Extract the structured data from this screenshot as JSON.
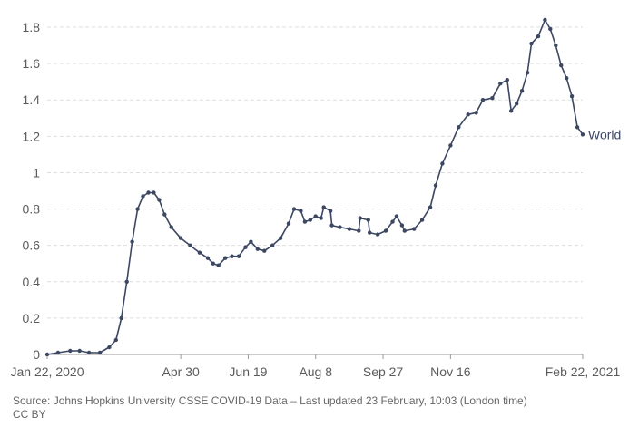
{
  "chart_data": {
    "type": "line",
    "title": "",
    "xlabel": "",
    "ylabel": "",
    "ylim": [
      0,
      1.85
    ],
    "y_ticks": [
      "0",
      "0.2",
      "0.4",
      "0.6",
      "0.8",
      "1",
      "1.2",
      "1.4",
      "1.6",
      "1.8"
    ],
    "x_ticks": [
      {
        "label": "Jan 22, 2020",
        "date": "2020-01-22"
      },
      {
        "label": "Apr 30",
        "date": "2020-04-30"
      },
      {
        "label": "Jun 19",
        "date": "2020-06-19"
      },
      {
        "label": "Aug 8",
        "date": "2020-08-08"
      },
      {
        "label": "Sep 27",
        "date": "2020-09-27"
      },
      {
        "label": "Nov 16",
        "date": "2020-11-16"
      },
      {
        "label": "Feb 22, 2021",
        "date": "2021-02-22"
      }
    ],
    "x_range": [
      "2020-01-22",
      "2021-02-22"
    ],
    "grid": "horizontal-dashed",
    "series": [
      {
        "name": "World",
        "color": "#3c4761",
        "points": [
          [
            "2020-01-22",
            0.0
          ],
          [
            "2020-01-30",
            0.01
          ],
          [
            "2020-02-08",
            0.02
          ],
          [
            "2020-02-15",
            0.02
          ],
          [
            "2020-02-22",
            0.01
          ],
          [
            "2020-03-01",
            0.01
          ],
          [
            "2020-03-08",
            0.04
          ],
          [
            "2020-03-13",
            0.08
          ],
          [
            "2020-03-17",
            0.2
          ],
          [
            "2020-03-21",
            0.4
          ],
          [
            "2020-03-25",
            0.62
          ],
          [
            "2020-03-29",
            0.8
          ],
          [
            "2020-04-02",
            0.87
          ],
          [
            "2020-04-06",
            0.89
          ],
          [
            "2020-04-10",
            0.89
          ],
          [
            "2020-04-14",
            0.85
          ],
          [
            "2020-04-18",
            0.77
          ],
          [
            "2020-04-23",
            0.7
          ],
          [
            "2020-04-30",
            0.64
          ],
          [
            "2020-05-07",
            0.6
          ],
          [
            "2020-05-14",
            0.56
          ],
          [
            "2020-05-20",
            0.53
          ],
          [
            "2020-05-24",
            0.5
          ],
          [
            "2020-05-28",
            0.49
          ],
          [
            "2020-06-02",
            0.53
          ],
          [
            "2020-06-07",
            0.54
          ],
          [
            "2020-06-12",
            0.54
          ],
          [
            "2020-06-17",
            0.59
          ],
          [
            "2020-06-21",
            0.62
          ],
          [
            "2020-06-26",
            0.58
          ],
          [
            "2020-07-01",
            0.57
          ],
          [
            "2020-07-07",
            0.6
          ],
          [
            "2020-07-13",
            0.64
          ],
          [
            "2020-07-19",
            0.72
          ],
          [
            "2020-07-23",
            0.8
          ],
          [
            "2020-07-28",
            0.79
          ],
          [
            "2020-07-31",
            0.73
          ],
          [
            "2020-08-04",
            0.74
          ],
          [
            "2020-08-08",
            0.76
          ],
          [
            "2020-08-12",
            0.75
          ],
          [
            "2020-08-14",
            0.81
          ],
          [
            "2020-08-19",
            0.79
          ],
          [
            "2020-08-20",
            0.71
          ],
          [
            "2020-08-26",
            0.7
          ],
          [
            "2020-09-02",
            0.69
          ],
          [
            "2020-09-09",
            0.68
          ],
          [
            "2020-09-10",
            0.75
          ],
          [
            "2020-09-16",
            0.74
          ],
          [
            "2020-09-17",
            0.67
          ],
          [
            "2020-09-23",
            0.66
          ],
          [
            "2020-09-29",
            0.68
          ],
          [
            "2020-10-04",
            0.73
          ],
          [
            "2020-10-07",
            0.76
          ],
          [
            "2020-10-11",
            0.71
          ],
          [
            "2020-10-13",
            0.68
          ],
          [
            "2020-10-20",
            0.69
          ],
          [
            "2020-10-26",
            0.74
          ],
          [
            "2020-11-01",
            0.81
          ],
          [
            "2020-11-05",
            0.93
          ],
          [
            "2020-11-10",
            1.05
          ],
          [
            "2020-11-16",
            1.15
          ],
          [
            "2020-11-22",
            1.25
          ],
          [
            "2020-11-29",
            1.32
          ],
          [
            "2020-12-05",
            1.33
          ],
          [
            "2020-12-10",
            1.4
          ],
          [
            "2020-12-17",
            1.41
          ],
          [
            "2020-12-23",
            1.49
          ],
          [
            "2020-12-28",
            1.51
          ],
          [
            "2020-12-31",
            1.34
          ],
          [
            "2021-01-04",
            1.38
          ],
          [
            "2021-01-08",
            1.45
          ],
          [
            "2021-01-12",
            1.55
          ],
          [
            "2021-01-15",
            1.71
          ],
          [
            "2021-01-20",
            1.75
          ],
          [
            "2021-01-25",
            1.84
          ],
          [
            "2021-01-29",
            1.79
          ],
          [
            "2021-02-02",
            1.7
          ],
          [
            "2021-02-06",
            1.59
          ],
          [
            "2021-02-10",
            1.52
          ],
          [
            "2021-02-14",
            1.42
          ],
          [
            "2021-02-18",
            1.25
          ],
          [
            "2021-02-22",
            1.21
          ]
        ]
      }
    ]
  },
  "footer": {
    "source": "Source: Johns Hopkins University CSSE COVID-19 Data – Last updated 23 February, 10:03 (London time)",
    "license": "CC BY"
  }
}
